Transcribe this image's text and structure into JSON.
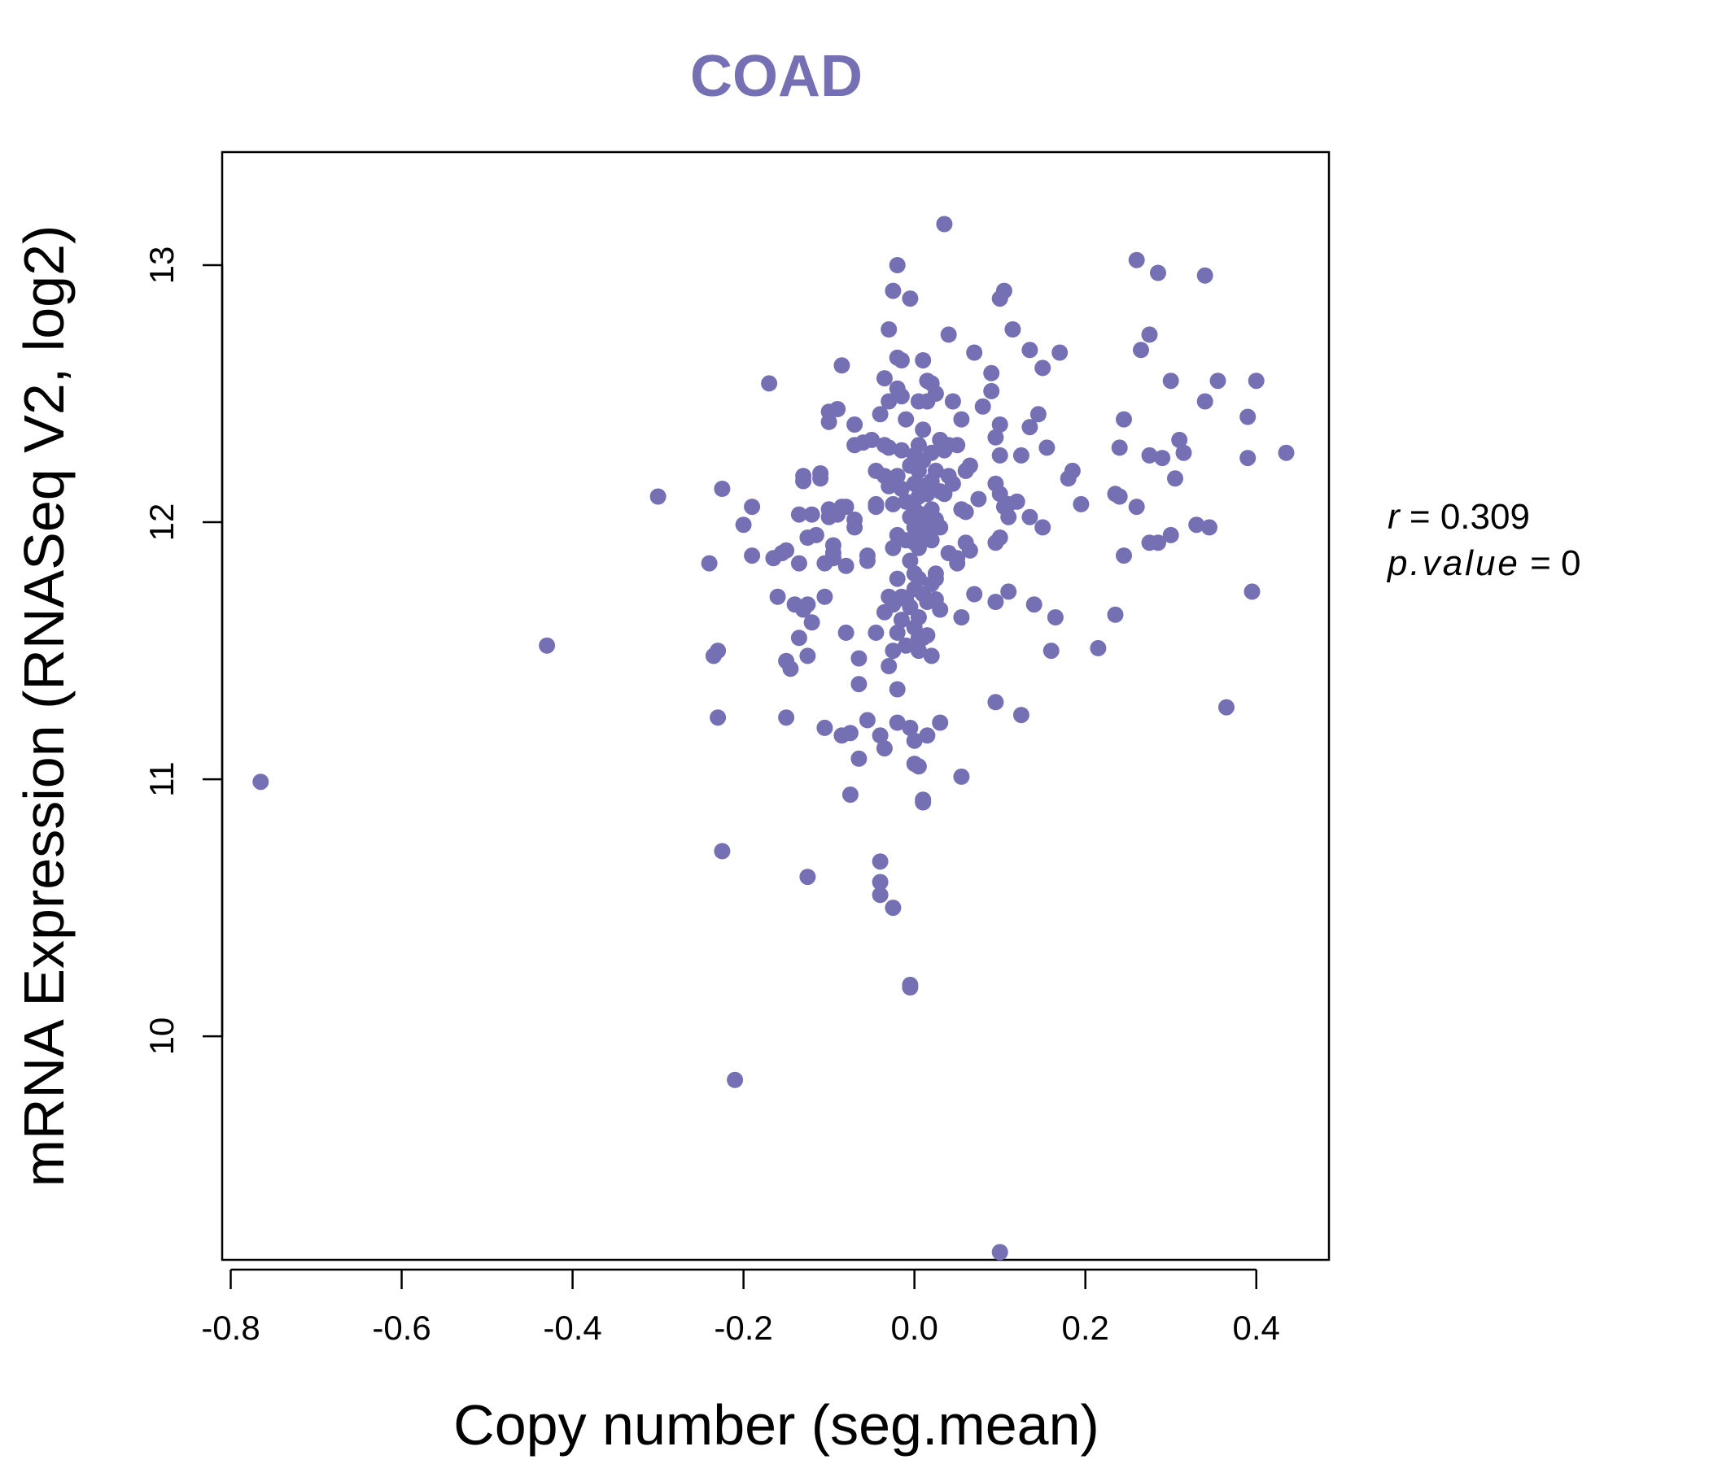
{
  "chart_data": {
    "type": "scatter",
    "title": "COAD",
    "xlabel": "Copy number (seg.mean)",
    "ylabel": "mRNA Expression (RNASeq V2, log2)",
    "xlim": [
      -0.81,
      0.485
    ],
    "ylim": [
      9.13,
      13.44
    ],
    "x_ticks": [
      -0.8,
      -0.6,
      -0.4,
      -0.2,
      0.0,
      0.2,
      0.4
    ],
    "x_tick_labels": [
      "-0.8",
      "-0.6",
      "-0.4",
      "-0.2",
      "0.0",
      "0.2",
      "0.4"
    ],
    "y_ticks": [
      10,
      11,
      12,
      13
    ],
    "y_tick_labels": [
      "10",
      "11",
      "12",
      "13"
    ],
    "grid": false,
    "point_color": "#7570b3",
    "title_color": "#7570b3",
    "annotation": {
      "r_label": "r",
      "r_value": "0.309",
      "p_label": "p.value",
      "p_value": "0"
    },
    "points": [
      [
        -0.765,
        10.99
      ],
      [
        -0.43,
        11.52
      ],
      [
        -0.3,
        12.1
      ],
      [
        -0.235,
        11.48
      ],
      [
        -0.23,
        11.5
      ],
      [
        -0.24,
        11.84
      ],
      [
        -0.23,
        11.24
      ],
      [
        -0.225,
        12.13
      ],
      [
        -0.225,
        10.72
      ],
      [
        -0.21,
        9.83
      ],
      [
        -0.2,
        11.99
      ],
      [
        -0.19,
        12.06
      ],
      [
        -0.19,
        11.87
      ],
      [
        -0.17,
        12.54
      ],
      [
        -0.165,
        11.86
      ],
      [
        -0.16,
        11.71
      ],
      [
        -0.155,
        11.88
      ],
      [
        -0.15,
        11.89
      ],
      [
        -0.15,
        11.24
      ],
      [
        -0.15,
        11.46
      ],
      [
        -0.145,
        11.43
      ],
      [
        -0.14,
        11.68
      ],
      [
        -0.135,
        11.84
      ],
      [
        -0.135,
        11.55
      ],
      [
        -0.135,
        12.03
      ],
      [
        -0.13,
        12.16
      ],
      [
        -0.13,
        12.18
      ],
      [
        -0.13,
        11.66
      ],
      [
        -0.125,
        11.68
      ],
      [
        -0.125,
        11.94
      ],
      [
        -0.125,
        11.48
      ],
      [
        -0.125,
        10.62
      ],
      [
        -0.12,
        12.03
      ],
      [
        -0.12,
        11.61
      ],
      [
        -0.115,
        11.95
      ],
      [
        -0.11,
        12.17
      ],
      [
        -0.11,
        12.19
      ],
      [
        -0.105,
        11.71
      ],
      [
        -0.105,
        11.84
      ],
      [
        -0.105,
        11.2
      ],
      [
        -0.1,
        12.43
      ],
      [
        -0.1,
        12.05
      ],
      [
        -0.1,
        12.39
      ],
      [
        -0.1,
        12.02
      ],
      [
        -0.095,
        11.88
      ],
      [
        -0.095,
        11.86
      ],
      [
        -0.095,
        11.91
      ],
      [
        -0.09,
        12.44
      ],
      [
        -0.09,
        12.03
      ],
      [
        -0.085,
        12.06
      ],
      [
        -0.085,
        11.17
      ],
      [
        -0.085,
        12.61
      ],
      [
        -0.08,
        12.06
      ],
      [
        -0.08,
        11.83
      ],
      [
        -0.08,
        11.57
      ],
      [
        -0.075,
        10.94
      ],
      [
        -0.075,
        11.18
      ],
      [
        -0.07,
        12.01
      ],
      [
        -0.07,
        11.98
      ],
      [
        -0.07,
        12.38
      ],
      [
        -0.07,
        12.3
      ],
      [
        -0.065,
        11.08
      ],
      [
        -0.065,
        11.37
      ],
      [
        -0.065,
        11.47
      ],
      [
        -0.06,
        12.31
      ],
      [
        -0.055,
        11.85
      ],
      [
        -0.055,
        11.87
      ],
      [
        -0.055,
        11.23
      ],
      [
        -0.05,
        12.32
      ],
      [
        -0.045,
        12.07
      ],
      [
        -0.045,
        12.06
      ],
      [
        -0.045,
        11.57
      ],
      [
        -0.045,
        12.2
      ],
      [
        -0.04,
        10.68
      ],
      [
        -0.04,
        10.6
      ],
      [
        -0.04,
        10.55
      ],
      [
        -0.04,
        11.17
      ],
      [
        -0.04,
        12.42
      ],
      [
        -0.035,
        12.56
      ],
      [
        -0.035,
        11.12
      ],
      [
        -0.035,
        11.65
      ],
      [
        -0.035,
        12.18
      ],
      [
        -0.035,
        12.3
      ],
      [
        -0.03,
        12.75
      ],
      [
        -0.03,
        12.47
      ],
      [
        -0.03,
        12.29
      ],
      [
        -0.03,
        12.14
      ],
      [
        -0.03,
        11.71
      ],
      [
        -0.03,
        11.44
      ],
      [
        -0.025,
        12.07
      ],
      [
        -0.025,
        11.68
      ],
      [
        -0.025,
        11.5
      ],
      [
        -0.025,
        10.5
      ],
      [
        -0.025,
        12.9
      ],
      [
        -0.025,
        11.9
      ],
      [
        -0.02,
        13.0
      ],
      [
        -0.02,
        12.64
      ],
      [
        -0.02,
        12.52
      ],
      [
        -0.02,
        12.18
      ],
      [
        -0.02,
        11.95
      ],
      [
        -0.02,
        11.78
      ],
      [
        -0.02,
        11.57
      ],
      [
        -0.02,
        11.35
      ],
      [
        -0.02,
        11.22
      ],
      [
        -0.015,
        12.63
      ],
      [
        -0.015,
        12.49
      ],
      [
        -0.015,
        12.28
      ],
      [
        -0.015,
        12.13
      ],
      [
        -0.015,
        11.71
      ],
      [
        -0.015,
        11.62
      ],
      [
        -0.01,
        12.4
      ],
      [
        -0.01,
        12.08
      ],
      [
        -0.01,
        11.93
      ],
      [
        -0.01,
        11.7
      ],
      [
        -0.01,
        11.52
      ],
      [
        -0.005,
        12.87
      ],
      [
        -0.005,
        12.22
      ],
      [
        -0.005,
        12.02
      ],
      [
        -0.005,
        11.85
      ],
      [
        -0.005,
        11.67
      ],
      [
        -0.005,
        11.2
      ],
      [
        -0.005,
        10.2
      ],
      [
        -0.005,
        10.19
      ],
      [
        0.0,
        12.26
      ],
      [
        0.0,
        12.15
      ],
      [
        0.0,
        12.05
      ],
      [
        0.0,
        11.98
      ],
      [
        0.0,
        11.92
      ],
      [
        0.0,
        11.8
      ],
      [
        0.0,
        11.74
      ],
      [
        0.0,
        11.59
      ],
      [
        0.0,
        11.15
      ],
      [
        0.0,
        11.06
      ],
      [
        0.005,
        12.47
      ],
      [
        0.005,
        12.3
      ],
      [
        0.005,
        12.2
      ],
      [
        0.005,
        12.1
      ],
      [
        0.005,
        12.0
      ],
      [
        0.005,
        11.9
      ],
      [
        0.005,
        11.78
      ],
      [
        0.005,
        11.63
      ],
      [
        0.005,
        11.55
      ],
      [
        0.005,
        11.5
      ],
      [
        0.005,
        11.05
      ],
      [
        0.01,
        12.63
      ],
      [
        0.01,
        12.36
      ],
      [
        0.01,
        12.24
      ],
      [
        0.01,
        12.14
      ],
      [
        0.01,
        12.03
      ],
      [
        0.01,
        11.93
      ],
      [
        0.01,
        11.72
      ],
      [
        0.01,
        11.55
      ],
      [
        0.01,
        10.92
      ],
      [
        0.01,
        10.91
      ],
      [
        0.015,
        12.55
      ],
      [
        0.015,
        12.47
      ],
      [
        0.015,
        12.11
      ],
      [
        0.015,
        11.98
      ],
      [
        0.015,
        11.69
      ],
      [
        0.015,
        11.56
      ],
      [
        0.015,
        11.17
      ],
      [
        0.02,
        12.54
      ],
      [
        0.02,
        12.27
      ],
      [
        0.02,
        12.16
      ],
      [
        0.02,
        12.05
      ],
      [
        0.02,
        11.93
      ],
      [
        0.02,
        11.76
      ],
      [
        0.02,
        11.48
      ],
      [
        0.025,
        12.5
      ],
      [
        0.025,
        12.2
      ],
      [
        0.025,
        12.01
      ],
      [
        0.025,
        11.8
      ],
      [
        0.025,
        11.7
      ],
      [
        0.025,
        11.78
      ],
      [
        0.03,
        12.32
      ],
      [
        0.03,
        12.12
      ],
      [
        0.03,
        11.98
      ],
      [
        0.03,
        11.66
      ],
      [
        0.03,
        11.22
      ],
      [
        0.035,
        13.16
      ],
      [
        0.035,
        12.28
      ],
      [
        0.035,
        12.11
      ],
      [
        0.04,
        12.73
      ],
      [
        0.04,
        12.3
      ],
      [
        0.04,
        11.88
      ],
      [
        0.04,
        12.18
      ],
      [
        0.045,
        12.47
      ],
      [
        0.045,
        12.15
      ],
      [
        0.05,
        12.3
      ],
      [
        0.05,
        11.84
      ],
      [
        0.05,
        11.86
      ],
      [
        0.055,
        12.4
      ],
      [
        0.055,
        12.05
      ],
      [
        0.055,
        11.63
      ],
      [
        0.055,
        11.01
      ],
      [
        0.06,
        12.2
      ],
      [
        0.06,
        12.04
      ],
      [
        0.06,
        11.92
      ],
      [
        0.065,
        12.22
      ],
      [
        0.065,
        11.89
      ],
      [
        0.07,
        11.72
      ],
      [
        0.07,
        12.66
      ],
      [
        0.075,
        12.09
      ],
      [
        0.08,
        12.45
      ],
      [
        0.09,
        12.58
      ],
      [
        0.09,
        12.51
      ],
      [
        0.095,
        12.33
      ],
      [
        0.095,
        12.15
      ],
      [
        0.095,
        11.92
      ],
      [
        0.095,
        11.69
      ],
      [
        0.095,
        11.3
      ],
      [
        0.1,
        12.87
      ],
      [
        0.1,
        12.38
      ],
      [
        0.1,
        12.26
      ],
      [
        0.1,
        12.11
      ],
      [
        0.1,
        11.94
      ],
      [
        0.1,
        9.16
      ],
      [
        0.105,
        12.9
      ],
      [
        0.105,
        12.06
      ],
      [
        0.11,
        12.07
      ],
      [
        0.11,
        12.02
      ],
      [
        0.11,
        11.73
      ],
      [
        0.115,
        12.75
      ],
      [
        0.12,
        12.08
      ],
      [
        0.125,
        12.26
      ],
      [
        0.125,
        11.25
      ],
      [
        0.135,
        12.67
      ],
      [
        0.135,
        12.37
      ],
      [
        0.135,
        12.02
      ],
      [
        0.14,
        11.68
      ],
      [
        0.145,
        12.42
      ],
      [
        0.15,
        12.6
      ],
      [
        0.15,
        11.98
      ],
      [
        0.155,
        12.29
      ],
      [
        0.16,
        11.5
      ],
      [
        0.165,
        11.63
      ],
      [
        0.17,
        12.66
      ],
      [
        0.18,
        12.17
      ],
      [
        0.185,
        12.2
      ],
      [
        0.195,
        12.07
      ],
      [
        0.215,
        11.51
      ],
      [
        0.235,
        11.64
      ],
      [
        0.235,
        12.11
      ],
      [
        0.24,
        12.1
      ],
      [
        0.24,
        12.29
      ],
      [
        0.245,
        12.4
      ],
      [
        0.245,
        11.87
      ],
      [
        0.26,
        12.06
      ],
      [
        0.26,
        13.02
      ],
      [
        0.265,
        12.67
      ],
      [
        0.275,
        12.73
      ],
      [
        0.275,
        12.26
      ],
      [
        0.275,
        11.92
      ],
      [
        0.285,
        12.97
      ],
      [
        0.285,
        11.92
      ],
      [
        0.29,
        12.25
      ],
      [
        0.3,
        11.95
      ],
      [
        0.3,
        12.55
      ],
      [
        0.305,
        12.17
      ],
      [
        0.31,
        12.32
      ],
      [
        0.315,
        12.27
      ],
      [
        0.33,
        11.99
      ],
      [
        0.34,
        12.47
      ],
      [
        0.34,
        12.96
      ],
      [
        0.345,
        11.98
      ],
      [
        0.355,
        12.55
      ],
      [
        0.365,
        11.28
      ],
      [
        0.39,
        12.41
      ],
      [
        0.39,
        12.25
      ],
      [
        0.395,
        11.73
      ],
      [
        0.4,
        12.55
      ],
      [
        0.435,
        12.27
      ]
    ]
  }
}
